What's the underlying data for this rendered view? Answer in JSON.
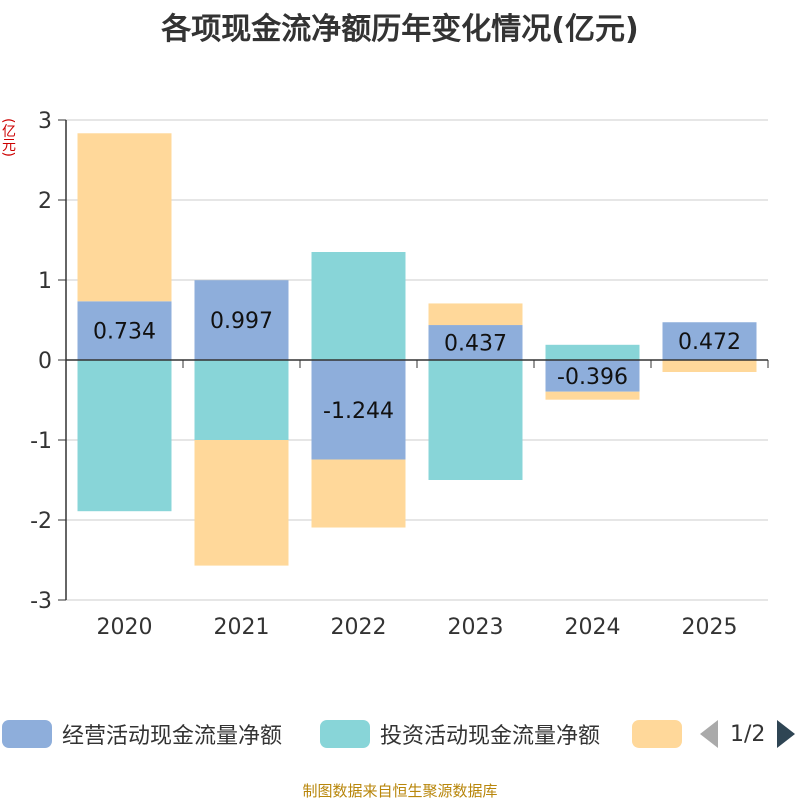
{
  "chart_data": {
    "type": "bar",
    "stacked": true,
    "title": "各项现金流净额历年变化情况(亿元)",
    "ylabel": "(亿元)",
    "categories": [
      "2020",
      "2021",
      "2022",
      "2023",
      "2024",
      "2025"
    ],
    "ylim": [
      -3,
      3
    ],
    "yticks": [
      -3,
      -2,
      -1,
      0,
      1,
      2,
      3
    ],
    "series": [
      {
        "name": "经营活动现金流量净额",
        "color": "#8eaedb",
        "values": [
          0.734,
          0.997,
          -1.244,
          0.437,
          -0.396,
          0.472
        ],
        "labeled": true
      },
      {
        "name": "投资活动现金流量净额",
        "color": "#88d5d8",
        "values": [
          -1.89,
          -1.0,
          1.35,
          -1.5,
          0.19,
          0.0
        ],
        "labeled": false
      },
      {
        "name": "",
        "color": "#ffd89a",
        "values": [
          2.1,
          -1.57,
          -0.85,
          0.27,
          -0.1,
          -0.15
        ],
        "labeled": false
      }
    ],
    "data_labels": [
      "0.734",
      "0.997",
      "-1.244",
      "0.437",
      "-0.396",
      "0.472"
    ]
  },
  "legend": {
    "items": [
      {
        "label": "经营活动现金流量净额",
        "color": "#8eaedb"
      },
      {
        "label": "投资活动现金流量净额",
        "color": "#88d5d8"
      },
      {
        "label": "",
        "color": "#ffd89a"
      }
    ],
    "page_indicator": "1/2"
  },
  "source": "制图数据来自恒生聚源数据库"
}
